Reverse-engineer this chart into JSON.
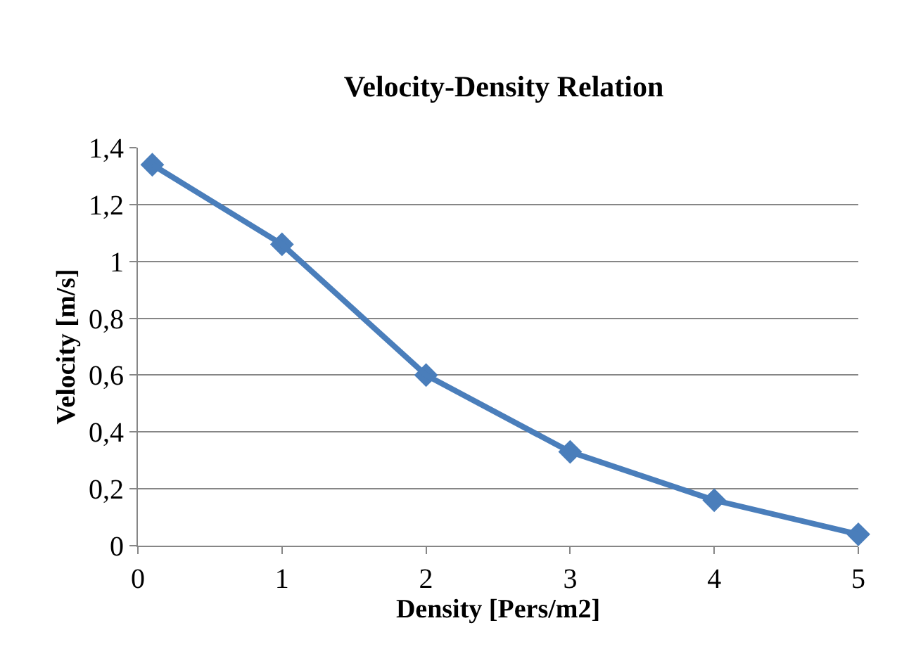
{
  "chart_data": {
    "type": "line",
    "title": "Velocity-Density Relation",
    "xlabel": "Density [Pers/m2]",
    "ylabel": "Velocity [m/s]",
    "x": [
      0.1,
      1,
      2,
      3,
      4,
      5
    ],
    "series": [
      {
        "color": "#4a7ebb",
        "values": [
          1.34,
          1.06,
          0.6,
          0.33,
          0.16,
          0.04
        ]
      }
    ],
    "xlim": [
      0,
      5
    ],
    "xticks": [
      0,
      1,
      2,
      3,
      4,
      5
    ],
    "ylim": [
      0,
      1.4
    ],
    "yticks": [
      0,
      {
        "value": 0.2,
        "label": "0,2"
      },
      {
        "value": 0.4,
        "label": "0,4"
      },
      {
        "value": 0.6,
        "label": "0,6"
      },
      {
        "value": 0.8,
        "label": "0,8"
      },
      1,
      {
        "value": 1.2,
        "label": "1,2"
      },
      {
        "value": 1.4,
        "label": "1,4"
      }
    ],
    "grid": "y",
    "marker": "diamond",
    "line_style": "solid"
  }
}
